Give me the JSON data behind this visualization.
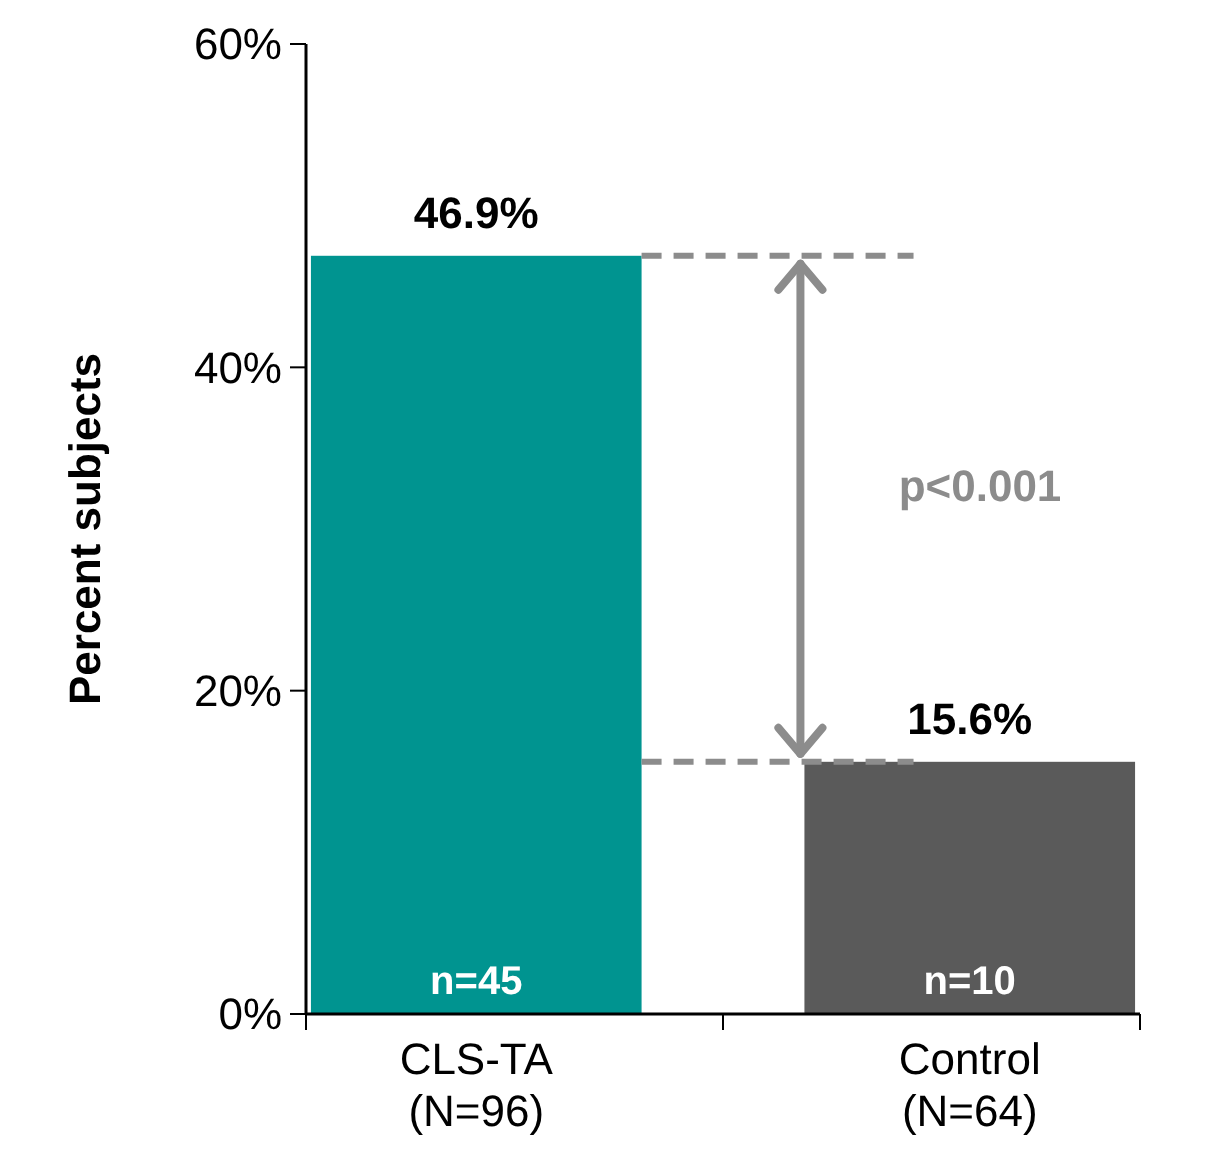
{
  "chart_data": {
    "type": "bar",
    "ylabel": "Percent subjects",
    "categories": [
      "CLS-TA\n(N=96)",
      "Control\n(N=64)"
    ],
    "values": [
      46.9,
      15.6
    ],
    "colors": [
      "#009490",
      "#5a5a5a"
    ],
    "value_labels": [
      "46.9%",
      "15.6%"
    ],
    "ylim": [
      0,
      60
    ],
    "yticks": [
      {
        "value": 0,
        "label": "0%"
      },
      {
        "value": 20,
        "label": "20%"
      },
      {
        "value": 40,
        "label": "40%"
      },
      {
        "value": 60,
        "label": "60%"
      }
    ],
    "ref_lines": [
      {
        "axis": "y",
        "value": 46.9,
        "color": "#8c8c8c",
        "line_style": "dashed"
      },
      {
        "axis": "y",
        "value": 15.6,
        "color": "#8c8c8c",
        "line_style": "dashed"
      }
    ],
    "annotations": [
      "n=45",
      "n=10",
      "p<0.001"
    ],
    "grid": false
  }
}
